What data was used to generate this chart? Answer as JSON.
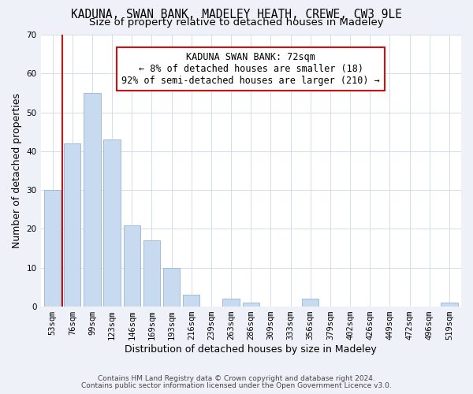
{
  "title": "KADUNA, SWAN BANK, MADELEY HEATH, CREWE, CW3 9LE",
  "subtitle": "Size of property relative to detached houses in Madeley",
  "xlabel": "Distribution of detached houses by size in Madeley",
  "ylabel": "Number of detached properties",
  "bar_labels": [
    "53sqm",
    "76sqm",
    "99sqm",
    "123sqm",
    "146sqm",
    "169sqm",
    "193sqm",
    "216sqm",
    "239sqm",
    "263sqm",
    "286sqm",
    "309sqm",
    "333sqm",
    "356sqm",
    "379sqm",
    "402sqm",
    "426sqm",
    "449sqm",
    "472sqm",
    "496sqm",
    "519sqm"
  ],
  "bar_values": [
    30,
    42,
    55,
    43,
    21,
    17,
    10,
    3,
    0,
    2,
    1,
    0,
    0,
    2,
    0,
    0,
    0,
    0,
    0,
    0,
    1
  ],
  "bar_color": "#c8daf0",
  "bar_edge_color": "#a0bcd8",
  "annotation_line1": "KADUNA SWAN BANK: 72sqm",
  "annotation_line2": "← 8% of detached houses are smaller (18)",
  "annotation_line3": "92% of semi-detached houses are larger (210) →",
  "annotation_box_edge_color": "#cc1111",
  "annotation_box_face_color": "#ffffff",
  "red_line_color": "#cc1111",
  "ylim": [
    0,
    70
  ],
  "yticks": [
    0,
    10,
    20,
    30,
    40,
    50,
    60,
    70
  ],
  "footer_line1": "Contains HM Land Registry data © Crown copyright and database right 2024.",
  "footer_line2": "Contains public sector information licensed under the Open Government Licence v3.0.",
  "title_fontsize": 10.5,
  "subtitle_fontsize": 9.5,
  "axis_label_fontsize": 9,
  "tick_fontsize": 7.5,
  "annotation_fontsize": 8.5,
  "footer_fontsize": 6.5,
  "background_color": "#eef2f8",
  "plot_bg_color": "#ffffff",
  "grid_color": "#d0d8e8"
}
